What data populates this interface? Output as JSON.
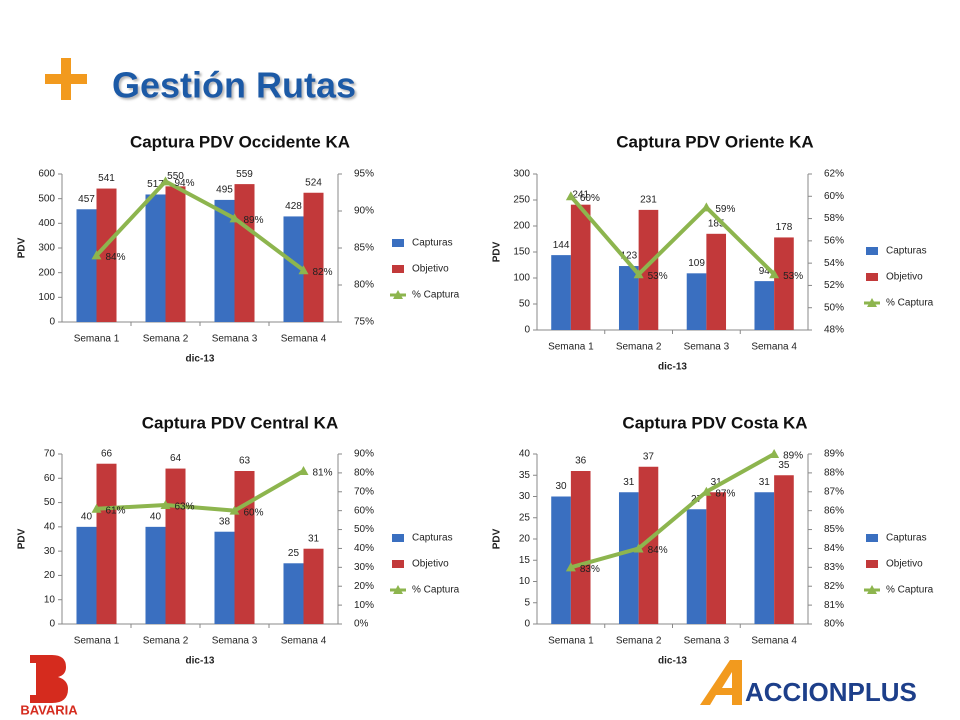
{
  "title": "Gestión Rutas",
  "logos": [
    "BAVARIA",
    "ACCIONPLUS"
  ],
  "chart_data": [
    {
      "type": "combo",
      "title": "Captura PDV Occidente KA",
      "x_label": "dic-13",
      "y_label": "PDV",
      "categories": [
        "Semana 1",
        "Semana 2",
        "Semana 3",
        "Semana 4"
      ],
      "series": [
        {
          "name": "Capturas",
          "color": "#3a6fc0",
          "type": "bar",
          "values": [
            457,
            517,
            495,
            428
          ]
        },
        {
          "name": "Objetivo",
          "color": "#c2393a",
          "type": "bar",
          "values": [
            541,
            550,
            559,
            524
          ]
        },
        {
          "name": "% Captura",
          "color": "#8db54e",
          "type": "line",
          "axis": "y2",
          "values": [
            84,
            94,
            89,
            82
          ],
          "value_labels": [
            "84%",
            "94%",
            "89%",
            "82%"
          ]
        }
      ],
      "ylim": [
        0,
        600
      ],
      "yticks": [
        0,
        100,
        200,
        300,
        400,
        500,
        600
      ],
      "y2lim": [
        75,
        95
      ],
      "y2ticks": [
        {
          "value": 75,
          "label": "75%"
        },
        {
          "value": 80,
          "label": "80%"
        },
        {
          "value": 85,
          "label": "85%"
        },
        {
          "value": 90,
          "label": "90%"
        },
        {
          "value": 95,
          "label": "95%"
        }
      ],
      "legend": "right"
    },
    {
      "type": "combo",
      "title": "Captura PDV Oriente KA",
      "x_label": "dic-13",
      "y_label": "PDV",
      "categories": [
        "Semana 1",
        "Semana 2",
        "Semana 3",
        "Semana 4"
      ],
      "series": [
        {
          "name": "Capturas",
          "color": "#3a6fc0",
          "type": "bar",
          "values": [
            144,
            123,
            109,
            94
          ]
        },
        {
          "name": "Objetivo",
          "color": "#c2393a",
          "type": "bar",
          "values": [
            241,
            231,
            185,
            178
          ]
        },
        {
          "name": "% Captura",
          "color": "#8db54e",
          "type": "line",
          "axis": "y2",
          "values": [
            60,
            53,
            59,
            53
          ],
          "value_labels": [
            "60%",
            "53%",
            "59%",
            "53%"
          ]
        }
      ],
      "ylim": [
        0,
        300
      ],
      "yticks": [
        0,
        50,
        100,
        150,
        200,
        250,
        300
      ],
      "y2lim": [
        48,
        62
      ],
      "y2ticks": [
        {
          "value": 48,
          "label": "48%"
        },
        {
          "value": 50,
          "label": "50%"
        },
        {
          "value": 52,
          "label": "52%"
        },
        {
          "value": 54,
          "label": "54%"
        },
        {
          "value": 56,
          "label": "56%"
        },
        {
          "value": 58,
          "label": "58%"
        },
        {
          "value": 60,
          "label": "60%"
        },
        {
          "value": 62,
          "label": "62%"
        }
      ],
      "legend": "right"
    },
    {
      "type": "combo",
      "title": "Captura PDV Central KA",
      "x_label": "dic-13",
      "y_label": "PDV",
      "categories": [
        "Semana 1",
        "Semana 2",
        "Semana 3",
        "Semana 4"
      ],
      "series": [
        {
          "name": "Capturas",
          "color": "#3a6fc0",
          "type": "bar",
          "values": [
            40,
            40,
            38,
            25
          ]
        },
        {
          "name": "Objetivo",
          "color": "#c2393a",
          "type": "bar",
          "values": [
            66,
            64,
            63,
            31
          ]
        },
        {
          "name": "% Captura",
          "color": "#8db54e",
          "type": "line",
          "axis": "y2",
          "values": [
            61,
            63,
            60,
            81
          ],
          "value_labels": [
            "61%",
            "63%",
            "60%",
            "81%"
          ]
        }
      ],
      "ylim": [
        0,
        70
      ],
      "yticks": [
        0,
        10,
        20,
        30,
        40,
        50,
        60,
        70
      ],
      "y2lim": [
        0,
        90
      ],
      "y2ticks": [
        {
          "value": 0,
          "label": "0%"
        },
        {
          "value": 10,
          "label": "10%"
        },
        {
          "value": 20,
          "label": "20%"
        },
        {
          "value": 30,
          "label": "30%"
        },
        {
          "value": 40,
          "label": "40%"
        },
        {
          "value": 50,
          "label": "50%"
        },
        {
          "value": 60,
          "label": "60%"
        },
        {
          "value": 70,
          "label": "70%"
        },
        {
          "value": 80,
          "label": "80%"
        },
        {
          "value": 90,
          "label": "90%"
        }
      ],
      "legend": "right"
    },
    {
      "type": "combo",
      "title": "Captura PDV Costa KA",
      "x_label": "dic-13",
      "y_label": "PDV",
      "categories": [
        "Semana 1",
        "Semana 2",
        "Semana 3",
        "Semana 4"
      ],
      "series": [
        {
          "name": "Capturas",
          "color": "#3a6fc0",
          "type": "bar",
          "values": [
            30,
            31,
            27,
            31
          ]
        },
        {
          "name": "Objetivo",
          "color": "#c2393a",
          "type": "bar",
          "values": [
            36,
            37,
            31,
            35
          ]
        },
        {
          "name": "% Captura",
          "color": "#8db54e",
          "type": "line",
          "axis": "y2",
          "values": [
            83,
            84,
            87,
            89
          ],
          "value_labels": [
            "83%",
            "84%",
            "87%",
            "89%"
          ]
        }
      ],
      "ylim": [
        0,
        40
      ],
      "yticks": [
        0,
        5,
        10,
        15,
        20,
        25,
        30,
        35,
        40
      ],
      "y2lim": [
        80,
        89
      ],
      "y2ticks": [
        {
          "value": 80,
          "label": "80%"
        },
        {
          "value": 81,
          "label": "81%"
        },
        {
          "value": 82,
          "label": "82%"
        },
        {
          "value": 83,
          "label": "83%"
        },
        {
          "value": 84,
          "label": "84%"
        },
        {
          "value": 85,
          "label": "85%"
        },
        {
          "value": 86,
          "label": "86%"
        },
        {
          "value": 87,
          "label": "87%"
        },
        {
          "value": 88,
          "label": "88%"
        },
        {
          "value": 89,
          "label": "89%"
        }
      ],
      "legend": "right"
    }
  ]
}
